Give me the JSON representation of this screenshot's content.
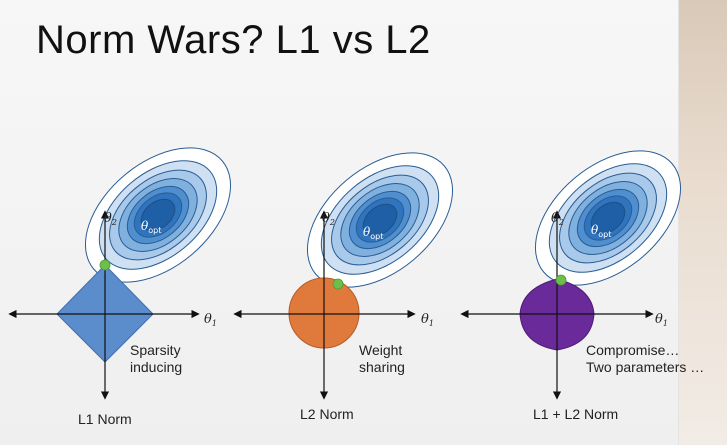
{
  "title": "Norm Wars? L1 vs L2",
  "panels": [
    {
      "norm_label": "L1 Norm",
      "description_lines": [
        "Sparsity",
        "inducing"
      ],
      "shape": "diamond",
      "shape_color": "#5b8ccc"
    },
    {
      "norm_label": "L2 Norm",
      "description_lines": [
        "Weight",
        "sharing"
      ],
      "shape": "circle",
      "shape_color": "#e07a3c"
    },
    {
      "norm_label": "L1 + L2 Norm",
      "description_lines": [
        "Compromise…",
        "Two parameters …"
      ],
      "shape": "elastic",
      "shape_color": "#6a2a9a"
    }
  ],
  "axis_labels": {
    "theta": "θ",
    "sub1": "1",
    "sub2": "2"
  },
  "optimum_label": {
    "theta": "θ",
    "sub": "opt"
  },
  "contour_colors": [
    "#1f5fa6",
    "#2f74bd",
    "#4f8fcf",
    "#7fb0de",
    "#a8c9e9",
    "#cfe0f2",
    "#ffffff"
  ],
  "touch_point_color": "#6cbf4a"
}
